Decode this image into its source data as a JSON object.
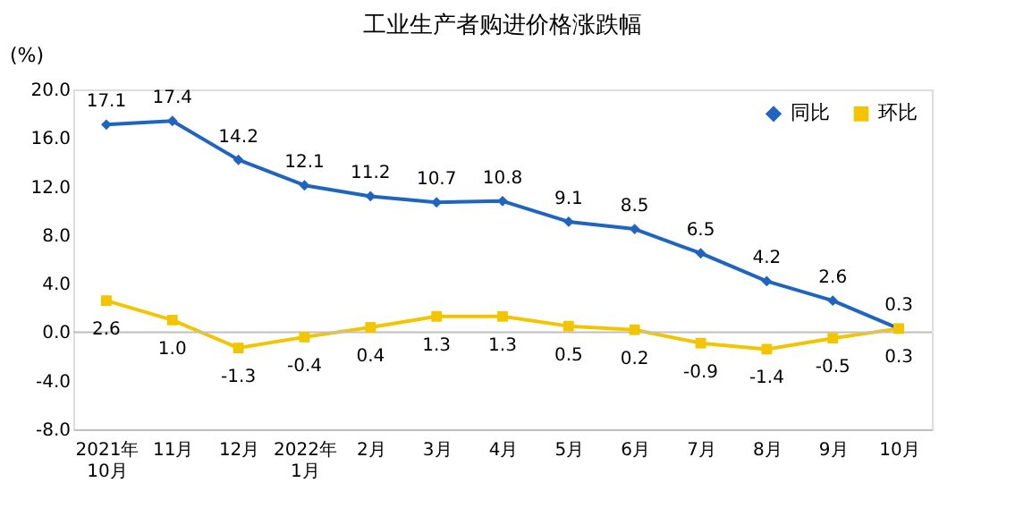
{
  "chart_data": {
    "type": "line",
    "title": "工业生产者购进价格涨跌幅",
    "ylabel": "(%)",
    "categories": [
      "2021年\n10月",
      "11月",
      "12月",
      "2022年\n1月",
      "2月",
      "3月",
      "4月",
      "5月",
      "6月",
      "7月",
      "8月",
      "9月",
      "10月"
    ],
    "series": [
      {
        "name": "同比",
        "color": "#1f65c0",
        "marker": "diamond",
        "values": [
          17.1,
          17.4,
          14.2,
          12.1,
          11.2,
          10.7,
          10.8,
          9.1,
          8.5,
          6.5,
          4.2,
          2.6,
          0.3
        ]
      },
      {
        "name": "环比",
        "color": "#f2c500",
        "marker": "square",
        "values": [
          2.6,
          1.0,
          -1.3,
          -0.4,
          0.4,
          1.3,
          1.3,
          0.5,
          0.2,
          -0.9,
          -1.4,
          -0.5,
          0.3
        ],
        "value_labels": [
          "2.6",
          "1.0",
          "-1.3",
          "-0.4",
          "0.4",
          "1.3",
          "1.3",
          "0.5",
          "0.2",
          "-0.9",
          "-1.4",
          "-0.5",
          "0.3"
        ]
      }
    ],
    "ylim": [
      -8.0,
      20.0
    ],
    "yticks": [
      {
        "value": -8,
        "label": "-8.0"
      },
      {
        "value": -4,
        "label": "-4.0"
      },
      {
        "value": 0,
        "label": "0.0"
      },
      {
        "value": 4,
        "label": "4.0"
      },
      {
        "value": 8,
        "label": "8.0"
      },
      {
        "value": 12,
        "label": "12.0"
      },
      {
        "value": 16,
        "label": "16.0"
      },
      {
        "value": 20,
        "label": "20.0"
      }
    ],
    "ref_lines": [
      {
        "axis": "y",
        "value": 0,
        "color": "#bfbfbf"
      }
    ],
    "data_labels": true,
    "legend": "top right",
    "grid": false
  }
}
